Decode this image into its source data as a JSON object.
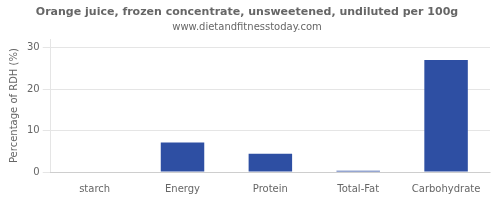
{
  "chart_data": {
    "type": "bar",
    "title": "Orange juice, frozen concentrate, unsweetened, undiluted per 100g",
    "subtitle": "www.dietandfitnesstoday.com",
    "categories": [
      "starch",
      "Energy",
      "Protein",
      "Total-Fat",
      "Carbohydrate"
    ],
    "values": [
      0,
      7.1,
      4.4,
      0.3,
      27.0
    ],
    "color": "#2e4fa3",
    "ylabel": "Percentage of RDH (%)",
    "ylim": [
      0,
      32
    ],
    "yticks": [
      0,
      10,
      20,
      30
    ],
    "grid": true
  }
}
